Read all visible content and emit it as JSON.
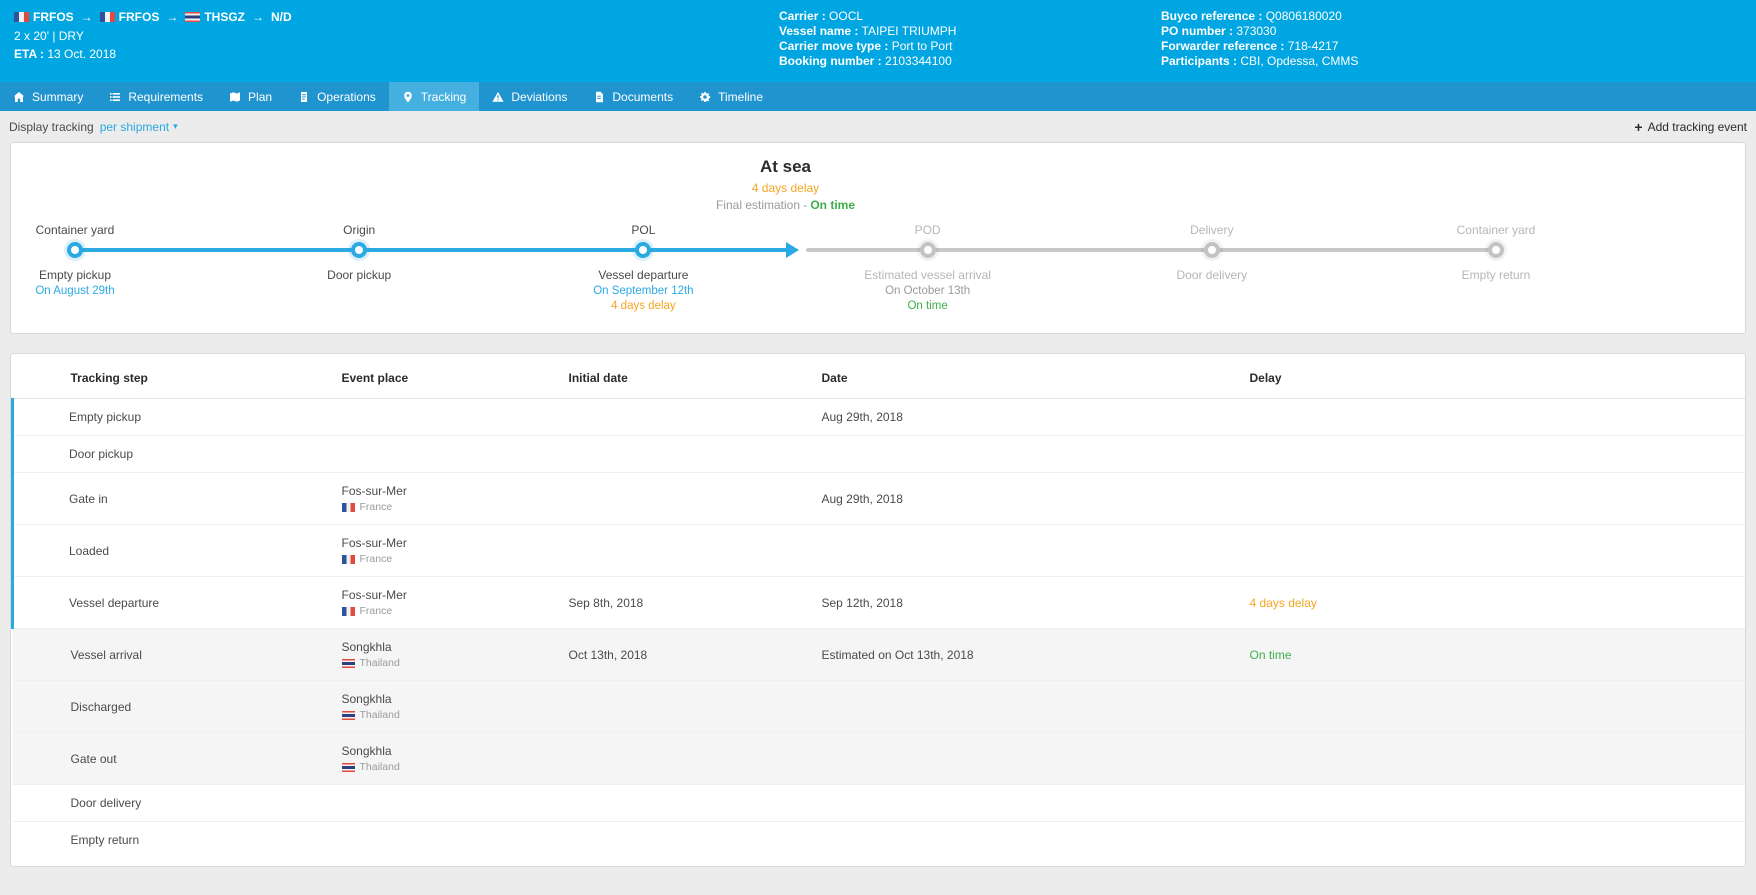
{
  "colors": {
    "accent": "#2aa9e2",
    "warning": "#f5a623",
    "ok": "#3dae49",
    "header": "#00a6e2",
    "tabbar": "#2094cf"
  },
  "header": {
    "route": [
      {
        "code": "FRFOS",
        "flag": "fr"
      },
      {
        "code": "FRFOS",
        "flag": "fr"
      },
      {
        "code": "THSGZ",
        "flag": "th"
      },
      {
        "code": "N/D",
        "flag": null
      }
    ],
    "container_info": "2 x 20' | DRY",
    "eta_label": "ETA :",
    "eta_value": "13 Oct. 2018",
    "details_left": [
      {
        "label": "Carrier :",
        "value": "OOCL"
      },
      {
        "label": "Vessel name :",
        "value": "TAIPEI TRIUMPH"
      },
      {
        "label": "Carrier move type :",
        "value": "Port to Port"
      },
      {
        "label": "Booking number :",
        "value": "2103344100"
      }
    ],
    "details_right": [
      {
        "label": "Buyco reference :",
        "value": "Q0806180020"
      },
      {
        "label": "PO number :",
        "value": "373030"
      },
      {
        "label": "Forwarder reference :",
        "value": "718-4217"
      },
      {
        "label": "Participants :",
        "value": "CBI, Opdessa, CMMS"
      }
    ]
  },
  "tabs": [
    {
      "label": "Summary",
      "icon": "home",
      "active": false
    },
    {
      "label": "Requirements",
      "icon": "list",
      "active": false
    },
    {
      "label": "Plan",
      "icon": "map",
      "active": false
    },
    {
      "label": "Operations",
      "icon": "page",
      "active": false
    },
    {
      "label": "Tracking",
      "icon": "pin",
      "active": true
    },
    {
      "label": "Deviations",
      "icon": "warning",
      "active": false
    },
    {
      "label": "Documents",
      "icon": "document",
      "active": false
    },
    {
      "label": "Timeline",
      "icon": "gear",
      "active": false
    }
  ],
  "toolbar": {
    "display_tracking_label": "Display tracking",
    "display_tracking_value": "per shipment",
    "add_event_label": "Add tracking event"
  },
  "status": {
    "title": "At sea",
    "delay_note": "4 days delay",
    "final_prefix": "Final estimation -",
    "final_value": "On time"
  },
  "timeline": {
    "steps": [
      {
        "title": "Container yard",
        "event": "Empty pickup",
        "state": "done",
        "lines": [
          {
            "text": "On August 29th",
            "color": "blue"
          }
        ]
      },
      {
        "title": "Origin",
        "event": "Door pickup",
        "state": "done",
        "lines": []
      },
      {
        "title": "POL",
        "event": "Vessel departure",
        "state": "done",
        "lines": [
          {
            "text": "On September 12th",
            "color": "blue"
          },
          {
            "text": "4 days delay",
            "color": "orange"
          }
        ]
      },
      {
        "title": "POD",
        "event": "Estimated vessel arrival",
        "state": "future",
        "lines": [
          {
            "text": "On October 13th",
            "color": "gray"
          },
          {
            "text": "On time",
            "color": "green"
          }
        ]
      },
      {
        "title": "Delivery",
        "event": "Door delivery",
        "state": "future",
        "lines": []
      },
      {
        "title": "Container yard",
        "event": "Empty return",
        "state": "future",
        "lines": []
      }
    ]
  },
  "table": {
    "columns": [
      "Tracking step",
      "Event place",
      "Initial date",
      "Date",
      "Delay"
    ],
    "rows": [
      {
        "step": "Empty pickup",
        "place": "",
        "country": "",
        "flag": null,
        "initial": "",
        "date": "Aug 29th, 2018",
        "delay": "",
        "delay_tone": null,
        "done": true,
        "shaded": false
      },
      {
        "step": "Door pickup",
        "place": "",
        "country": "",
        "flag": null,
        "initial": "",
        "date": "",
        "delay": "",
        "delay_tone": null,
        "done": true,
        "shaded": false
      },
      {
        "step": "Gate in",
        "place": "Fos-sur-Mer",
        "country": "France",
        "flag": "fr",
        "initial": "",
        "date": "Aug 29th, 2018",
        "delay": "",
        "delay_tone": null,
        "done": true,
        "shaded": false
      },
      {
        "step": "Loaded",
        "place": "Fos-sur-Mer",
        "country": "France",
        "flag": "fr",
        "initial": "",
        "date": "",
        "delay": "",
        "delay_tone": null,
        "done": true,
        "shaded": false
      },
      {
        "step": "Vessel departure",
        "place": "Fos-sur-Mer",
        "country": "France",
        "flag": "fr",
        "initial": "Sep 8th, 2018",
        "date": "Sep 12th, 2018",
        "delay": "4 days delay",
        "delay_tone": "warning",
        "done": true,
        "shaded": false
      },
      {
        "step": "Vessel arrival",
        "place": "Songkhla",
        "country": "Thailand",
        "flag": "th",
        "initial": "Oct 13th, 2018",
        "date": "Estimated on Oct 13th, 2018",
        "delay": "On time",
        "delay_tone": "ok",
        "done": false,
        "shaded": true
      },
      {
        "step": "Discharged",
        "place": "Songkhla",
        "country": "Thailand",
        "flag": "th",
        "initial": "",
        "date": "",
        "delay": "",
        "delay_tone": null,
        "done": false,
        "shaded": true
      },
      {
        "step": "Gate out",
        "place": "Songkhla",
        "country": "Thailand",
        "flag": "th",
        "initial": "",
        "date": "",
        "delay": "",
        "delay_tone": null,
        "done": false,
        "shaded": true
      },
      {
        "step": "Door delivery",
        "place": "",
        "country": "",
        "flag": null,
        "initial": "",
        "date": "",
        "delay": "",
        "delay_tone": null,
        "done": false,
        "shaded": false
      },
      {
        "step": "Empty return",
        "place": "",
        "country": "",
        "flag": null,
        "initial": "",
        "date": "",
        "delay": "",
        "delay_tone": null,
        "done": false,
        "shaded": false
      }
    ]
  }
}
